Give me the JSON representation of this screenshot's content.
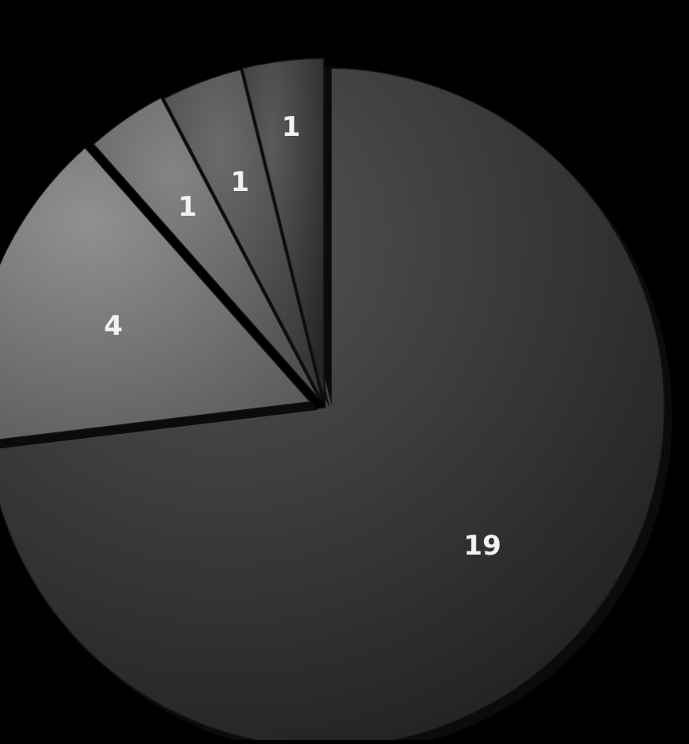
{
  "chart_data": {
    "type": "pie",
    "title": "",
    "slices": [
      {
        "value": 19,
        "label": "19",
        "color": "#2e2e2e",
        "exploded": false
      },
      {
        "value": 4,
        "label": "4",
        "color": "#6a6a6a",
        "exploded": true
      },
      {
        "value": 1,
        "label": "1",
        "color": "#5e5e5e",
        "exploded": true
      },
      {
        "value": 1,
        "label": "1",
        "color": "#454545",
        "exploded": true
      },
      {
        "value": 1,
        "label": "1",
        "color": "#353535",
        "exploded": true
      }
    ],
    "background": "#000000",
    "legend": "none",
    "style": "3d-shaded"
  }
}
